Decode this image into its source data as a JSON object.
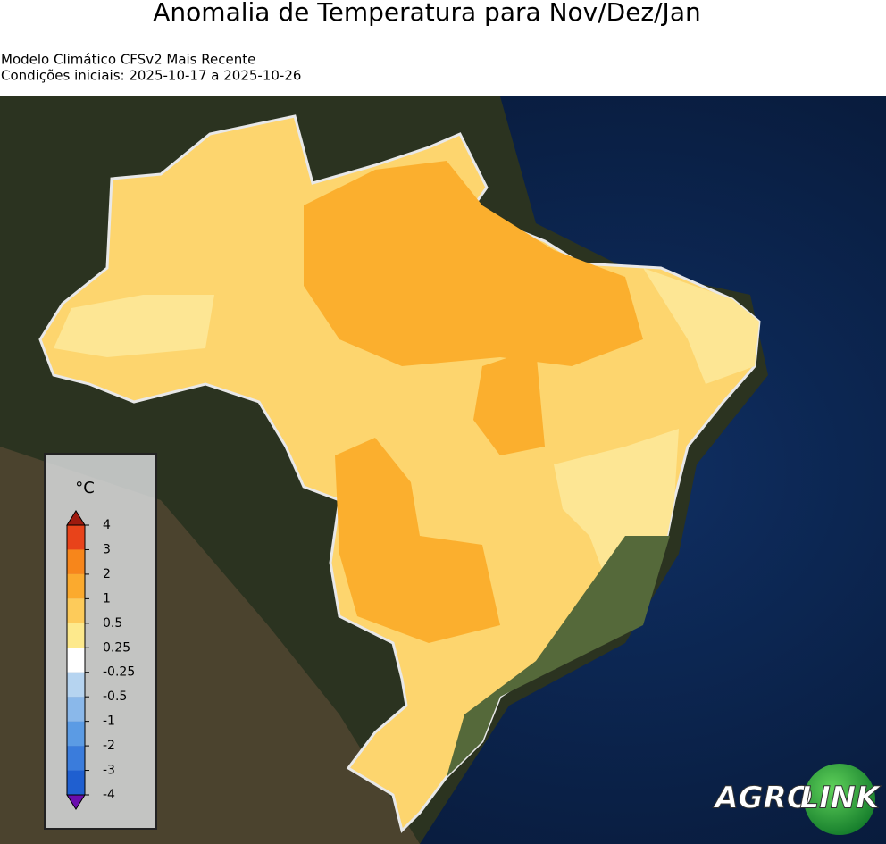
{
  "header": {
    "title": "Anomalia de Temperatura para Nov/Dez/Jan",
    "model": "Modelo Climático CFSv2 Mais Recente",
    "conditions": "Condições iniciais: 2025-10-17 a 2025-10-26"
  },
  "colorbar": {
    "unit": "°C",
    "ticks": [
      4,
      3,
      2,
      1,
      0.5,
      0.25,
      -0.25,
      -0.5,
      -1,
      -2,
      -3,
      -4
    ],
    "colors": [
      "#e8431a",
      "#f7861b",
      "#fbaa2e",
      "#fdcb5a",
      "#fde98c",
      "#ffffff",
      "#b6d4f0",
      "#8ab8ea",
      "#5b9be4",
      "#3a7cdc",
      "#1f5fd0"
    ],
    "extend_colors": [
      "#9e1a0e",
      "#6a0dad"
    ]
  },
  "logo": {
    "part1": "AGRO",
    "part2": "LINK"
  }
}
